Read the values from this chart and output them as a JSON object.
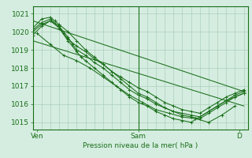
{
  "title": "",
  "xlabel": "Pression niveau de la mer( hPa )",
  "bg_color": "#d5ede0",
  "grid_color": "#aacfba",
  "line_color": "#1a6e1a",
  "ylim": [
    1014.6,
    1021.4
  ],
  "xlim": [
    0,
    98
  ],
  "x_ticks": [
    2,
    48,
    94
  ],
  "x_tick_labels": [
    "Ven",
    "Sam",
    "D"
  ],
  "y_ticks": [
    1015,
    1016,
    1017,
    1018,
    1019,
    1020,
    1021
  ],
  "minor_x_step": 4,
  "vline_x": 48,
  "series": [
    {
      "x": [
        0,
        4,
        8,
        12,
        14,
        16,
        20,
        24,
        28,
        32,
        36,
        40,
        44,
        48,
        52,
        56,
        60,
        64,
        68,
        72,
        76,
        80,
        84,
        88,
        92,
        96
      ],
      "y": [
        1020.0,
        1020.4,
        1020.6,
        1020.3,
        1019.9,
        1019.6,
        1019.2,
        1018.9,
        1018.5,
        1018.2,
        1017.8,
        1017.5,
        1017.2,
        1016.9,
        1016.7,
        1016.4,
        1016.1,
        1015.9,
        1015.7,
        1015.6,
        1015.5,
        1015.8,
        1016.1,
        1016.4,
        1016.6,
        1016.8
      ],
      "style": "markers"
    },
    {
      "x": [
        0,
        4,
        8,
        10,
        12,
        16,
        20,
        24,
        28,
        32,
        36,
        40,
        44,
        48,
        52,
        56,
        60,
        64,
        68,
        72,
        76,
        80,
        84,
        88,
        92,
        96
      ],
      "y": [
        1020.2,
        1020.7,
        1020.8,
        1020.6,
        1020.4,
        1020.0,
        1019.5,
        1019.0,
        1018.6,
        1018.2,
        1017.8,
        1017.4,
        1017.0,
        1016.6,
        1016.4,
        1016.1,
        1015.8,
        1015.6,
        1015.4,
        1015.3,
        1015.2,
        1015.5,
        1015.8,
        1016.1,
        1016.4,
        1016.6
      ],
      "style": "markers"
    },
    {
      "x": [
        0,
        4,
        8,
        12,
        16,
        18,
        20,
        24,
        28,
        32,
        36,
        40,
        44,
        48,
        52,
        56,
        60,
        64,
        68,
        72,
        76,
        80,
        84,
        88,
        92,
        96
      ],
      "y": [
        1020.1,
        1020.5,
        1020.7,
        1020.3,
        1019.7,
        1019.3,
        1019.0,
        1018.7,
        1018.3,
        1018.0,
        1017.6,
        1017.2,
        1016.8,
        1016.5,
        1016.3,
        1016.0,
        1015.8,
        1015.6,
        1015.5,
        1015.4,
        1015.3,
        1015.6,
        1015.9,
        1016.2,
        1016.5,
        1016.7
      ],
      "style": "markers"
    },
    {
      "x": [
        0,
        4,
        8,
        12,
        16,
        20,
        22,
        24,
        28,
        32,
        36,
        40,
        44,
        48,
        52,
        56,
        60,
        64,
        68,
        72,
        76,
        80,
        84,
        88,
        92,
        96
      ],
      "y": [
        1019.8,
        1020.3,
        1020.6,
        1020.2,
        1019.5,
        1018.9,
        1018.6,
        1018.4,
        1018.0,
        1017.6,
        1017.2,
        1016.8,
        1016.4,
        1016.1,
        1015.9,
        1015.6,
        1015.4,
        1015.2,
        1015.1,
        1015.0,
        1015.3,
        1015.6,
        1015.9,
        1016.2,
        1016.4,
        1016.6
      ],
      "style": "markers"
    },
    {
      "x": [
        2,
        8,
        14,
        20,
        26,
        32,
        38,
        44,
        50,
        56,
        62,
        68,
        74,
        80,
        86,
        92
      ],
      "y": [
        1019.9,
        1019.3,
        1018.7,
        1018.4,
        1018.0,
        1017.5,
        1017.0,
        1016.5,
        1016.1,
        1015.7,
        1015.5,
        1015.3,
        1015.2,
        1015.0,
        1015.4,
        1015.9
      ],
      "style": "markers"
    },
    {
      "x": [
        0,
        96
      ],
      "y": [
        1020.6,
        1016.7
      ],
      "style": "straight"
    },
    {
      "x": [
        0,
        96
      ],
      "y": [
        1019.5,
        1015.9
      ],
      "style": "straight"
    }
  ]
}
